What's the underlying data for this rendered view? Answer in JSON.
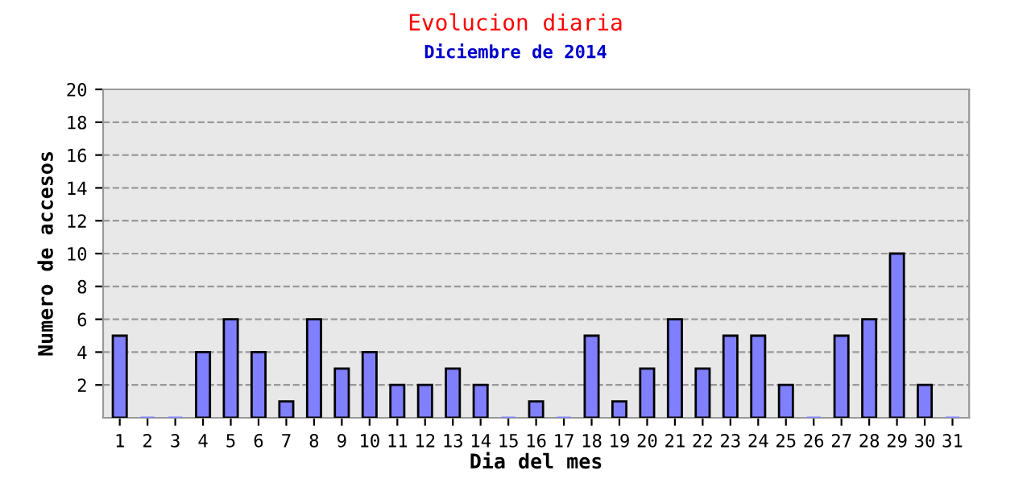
{
  "chart_data": {
    "type": "bar",
    "title": "Evolucion diaria",
    "subtitle": "Diciembre de 2014",
    "xlabel": "Dia del mes",
    "ylabel": "Numero de accesos",
    "categories": [
      "1",
      "2",
      "3",
      "4",
      "5",
      "6",
      "7",
      "8",
      "9",
      "10",
      "11",
      "12",
      "13",
      "14",
      "15",
      "16",
      "17",
      "18",
      "19",
      "20",
      "21",
      "22",
      "23",
      "24",
      "25",
      "26",
      "27",
      "28",
      "29",
      "30",
      "31"
    ],
    "values": [
      5,
      0,
      0,
      4,
      6,
      4,
      1,
      6,
      3,
      4,
      2,
      2,
      3,
      2,
      0,
      1,
      0,
      5,
      1,
      3,
      6,
      3,
      5,
      5,
      2,
      0,
      5,
      6,
      10,
      2,
      0
    ],
    "color": "#8080ff",
    "ylim": [
      0,
      20
    ],
    "yticks": [
      2,
      4,
      6,
      8,
      10,
      12,
      14,
      16,
      18,
      20
    ],
    "grid": "y"
  }
}
